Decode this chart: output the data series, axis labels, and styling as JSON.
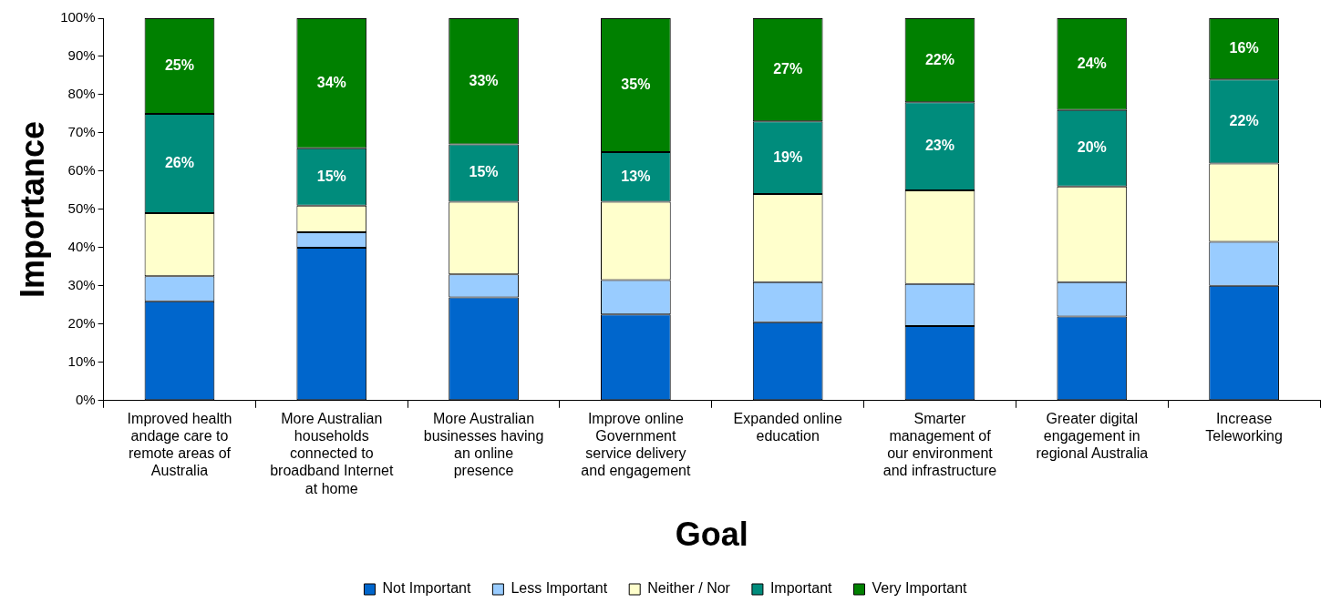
{
  "chart_data": {
    "type": "bar",
    "stacked": true,
    "xlabel": "Goal",
    "ylabel": "Importance",
    "categories": [
      "Improved health\nandage care to\nremote areas of\nAustralia",
      "More Australian\nhouseholds\nconnected to\nbroadband Internet\nat home",
      "More Australian\nbusinesses having\nan online\npresence",
      "Improve online\nGovernment\nservice delivery\nand engagement",
      "Expanded online\neducation",
      "Smarter\nmanagement of\nour environment\nand infrastructure",
      "Greater digital\nengagement in\nregional Australia",
      "Increase\nTeleworking"
    ],
    "series": [
      {
        "name": "Not Important",
        "color": "#0066cc",
        "values": [
          26,
          40,
          27,
          22.5,
          20.5,
          19.5,
          22,
          30
        ]
      },
      {
        "name": "Less Important",
        "color": "#99ccff",
        "values": [
          6.5,
          4,
          6,
          9,
          10.5,
          11,
          9,
          11.5
        ]
      },
      {
        "name": "Neither / Nor",
        "color": "#ffffcc",
        "values": [
          16.5,
          7,
          19,
          20.5,
          23,
          24.5,
          25,
          20.5
        ]
      },
      {
        "name": "Important",
        "color": "#008c7c",
        "values": [
          26,
          15,
          15,
          13,
          19,
          23,
          20,
          22
        ],
        "value_labels": [
          "26%",
          "15%",
          "15%",
          "13%",
          "19%",
          "23%",
          "20%",
          "22%"
        ]
      },
      {
        "name": "Very Important",
        "color": "#008000",
        "values": [
          25,
          34,
          33,
          35,
          27,
          22,
          24,
          16
        ],
        "value_labels": [
          "25%",
          "34%",
          "33%",
          "35%",
          "27%",
          "22%",
          "24%",
          "16%"
        ]
      }
    ],
    "ylim": [
      0,
      100
    ],
    "yticks": [
      {
        "value": 0,
        "label": "0%"
      },
      {
        "value": 10,
        "label": "10%"
      },
      {
        "value": 20,
        "label": "20%"
      },
      {
        "value": 30,
        "label": "30%"
      },
      {
        "value": 40,
        "label": "40%"
      },
      {
        "value": 50,
        "label": "50%"
      },
      {
        "value": 60,
        "label": "60%"
      },
      {
        "value": 70,
        "label": "70%"
      },
      {
        "value": 80,
        "label": "80%"
      },
      {
        "value": 90,
        "label": "90%"
      },
      {
        "value": 100,
        "label": "100%"
      }
    ],
    "legend": "bottom"
  }
}
